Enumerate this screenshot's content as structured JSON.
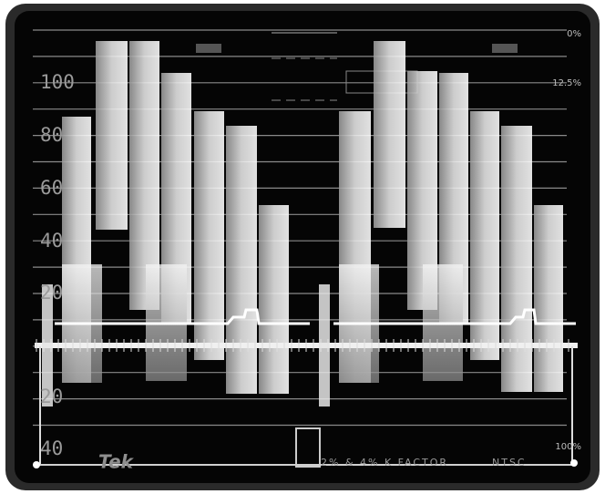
{
  "scale_labels_left": [
    "100",
    "80",
    "60",
    "40",
    "20",
    "20",
    "40"
  ],
  "scale_labels_right": [
    "0%",
    "12.5%",
    "100%"
  ],
  "logo": "Tek",
  "footer": {
    "k_factor": "2% & 4% K FACTOR",
    "standard": "NTSC"
  }
}
